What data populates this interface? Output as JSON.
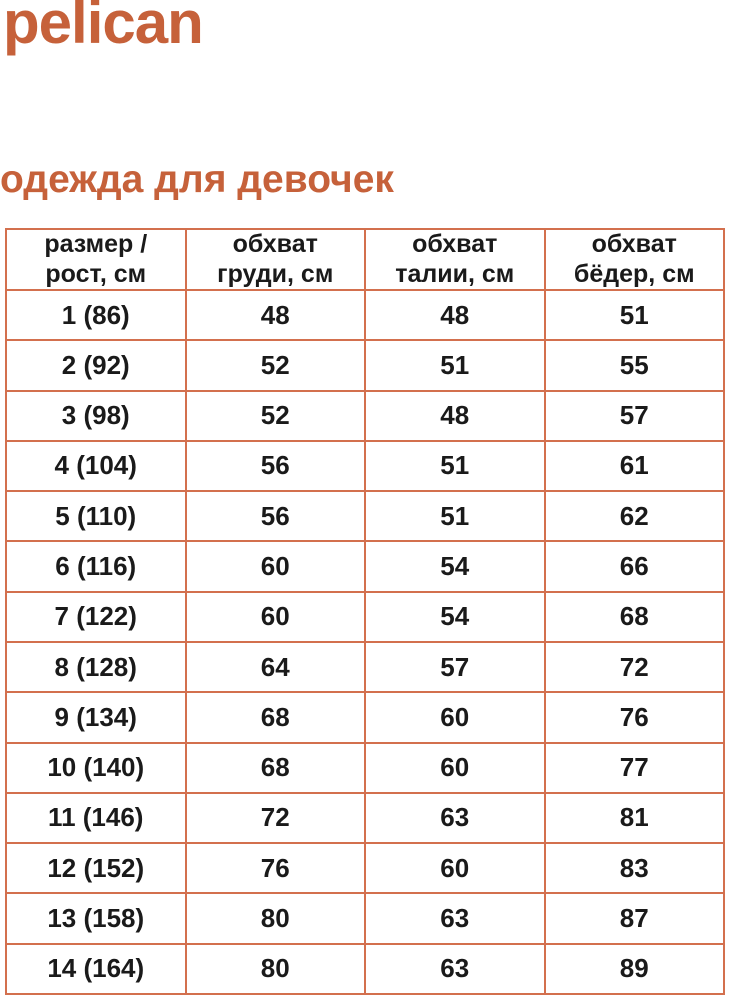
{
  "brand": {
    "logo_text": "pelican",
    "logo_color": "#c6613a"
  },
  "page": {
    "heading": "одежда для девочек",
    "heading_color": "#c6613a",
    "background_color": "#ffffff"
  },
  "table": {
    "border_color": "#d3704e",
    "text_color": "#1a1a1a",
    "headers": [
      "размер /\nрост, см",
      "обхват\nгруди, см",
      "обхват\nталии, см",
      "обхват\nбёдер, см"
    ],
    "rows": [
      {
        "size": "1 (86)",
        "chest": "48",
        "waist": "48",
        "hips": "51"
      },
      {
        "size": "2 (92)",
        "chest": "52",
        "waist": "51",
        "hips": "55"
      },
      {
        "size": "3 (98)",
        "chest": "52",
        "waist": "48",
        "hips": "57"
      },
      {
        "size": "4 (104)",
        "chest": "56",
        "waist": "51",
        "hips": "61"
      },
      {
        "size": "5 (110)",
        "chest": "56",
        "waist": "51",
        "hips": "62"
      },
      {
        "size": "6 (116)",
        "chest": "60",
        "waist": "54",
        "hips": "66"
      },
      {
        "size": "7 (122)",
        "chest": "60",
        "waist": "54",
        "hips": "68"
      },
      {
        "size": "8 (128)",
        "chest": "64",
        "waist": "57",
        "hips": "72"
      },
      {
        "size": "9 (134)",
        "chest": "68",
        "waist": "60",
        "hips": "76"
      },
      {
        "size": "10 (140)",
        "chest": "68",
        "waist": "60",
        "hips": "77"
      },
      {
        "size": "11 (146)",
        "chest": "72",
        "waist": "63",
        "hips": "81"
      },
      {
        "size": "12 (152)",
        "chest": "76",
        "waist": "60",
        "hips": "83"
      },
      {
        "size": "13 (158)",
        "chest": "80",
        "waist": "63",
        "hips": "87"
      },
      {
        "size": "14 (164)",
        "chest": "80",
        "waist": "63",
        "hips": "89"
      }
    ]
  }
}
